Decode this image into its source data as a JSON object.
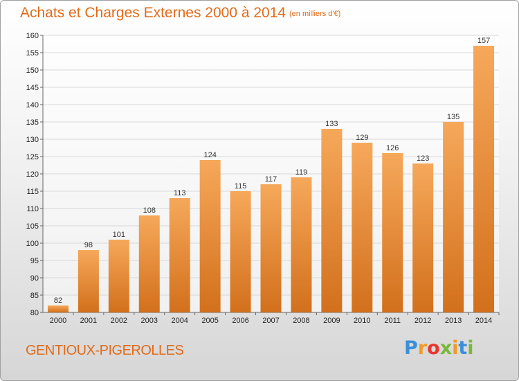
{
  "header": {
    "title": "Achats et Charges Externes 2000 à 2014",
    "subtitle": "(en milliers d'€)"
  },
  "footer": {
    "commune": "GENTIOUX-PIGEROLLES",
    "logo_letters": [
      "P",
      "r",
      "o",
      "x",
      "i",
      "t",
      "i"
    ],
    "logo_colors": [
      "#3a8fd8",
      "#f39a2a",
      "#e8352d",
      "#7ab83a",
      "#f39a2a",
      "#3a8fd8",
      "#7ab83a"
    ]
  },
  "colors": {
    "bar_light": "#f6a85a",
    "bar_dark": "#d2701c",
    "accent": "#e06b1a"
  },
  "chart_data": {
    "type": "bar",
    "categories": [
      "2000",
      "2001",
      "2002",
      "2003",
      "2004",
      "2005",
      "2006",
      "2007",
      "2008",
      "2009",
      "2010",
      "2011",
      "2012",
      "2013",
      "2014"
    ],
    "values": [
      82,
      98,
      101,
      108,
      113,
      124,
      115,
      117,
      119,
      133,
      129,
      126,
      123,
      135,
      157
    ],
    "ylim": [
      80,
      160
    ],
    "yticks": [
      80,
      85,
      90,
      95,
      100,
      105,
      110,
      115,
      120,
      125,
      130,
      135,
      140,
      145,
      150,
      155,
      160
    ],
    "grid": true,
    "legend": "none"
  }
}
